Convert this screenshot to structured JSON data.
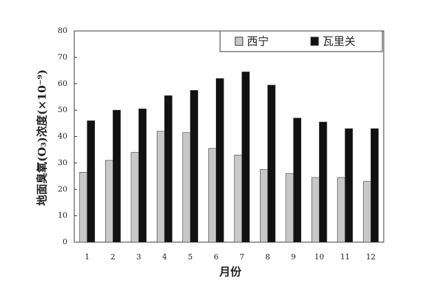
{
  "chart_data": {
    "type": "bar",
    "xlabel": "月份",
    "ylabel": "地面臭氧(O₃)浓度(×10⁻⁹)",
    "categories": [
      "1",
      "2",
      "3",
      "4",
      "5",
      "6",
      "7",
      "8",
      "9",
      "10",
      "11",
      "12"
    ],
    "series": [
      {
        "name": "西宁",
        "color": "#c8c8c8",
        "values": [
          26.5,
          31,
          34,
          42,
          41.5,
          35.5,
          33,
          27.5,
          26,
          24.5,
          24.5,
          23
        ]
      },
      {
        "name": "瓦里关",
        "color": "#111111",
        "values": [
          46,
          50,
          50.5,
          55.5,
          57.5,
          62,
          64.5,
          59.5,
          47,
          45.5,
          43,
          43
        ]
      }
    ],
    "ylim": [
      0,
      80
    ],
    "yticks": [
      0,
      10,
      20,
      30,
      40,
      50,
      60,
      70,
      80
    ],
    "legend": "upper right"
  }
}
